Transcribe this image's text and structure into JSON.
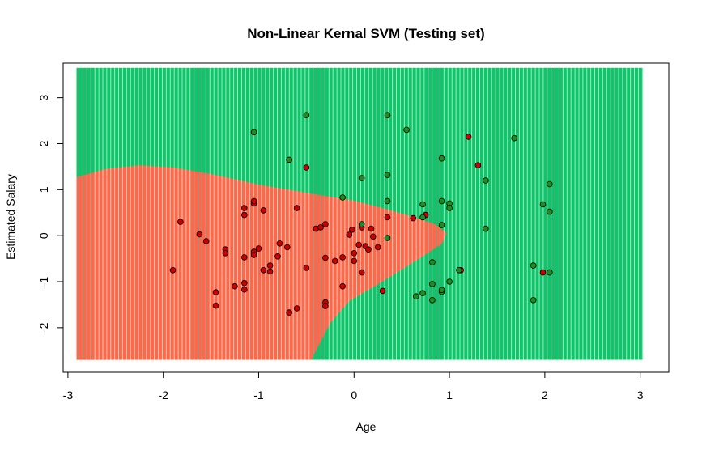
{
  "chart_data": {
    "type": "scatter",
    "title": "Non-Linear Kernal SVM (Testing set)",
    "xlabel": "Age",
    "ylabel": "Estimated Salary",
    "xlim": [
      -3.05,
      3.3
    ],
    "ylim": [
      -2.97,
      3.75
    ],
    "xticks": [
      -3,
      -2,
      -1,
      0,
      1,
      2,
      3
    ],
    "yticks": [
      -2,
      -1,
      0,
      1,
      2,
      3
    ],
    "grid": false,
    "region_extent": {
      "x": [
        -2.91,
        3.03
      ],
      "y": [
        -2.7,
        3.65
      ]
    },
    "colors": {
      "class0_region": "#FA6A4A",
      "class1_region": "#10C46A",
      "class0_point": "#CC0000",
      "class1_point": "#1E8C1E",
      "point_edge": "#000000"
    },
    "decision_boundary": [
      [
        -2.91,
        1.27
      ],
      [
        -2.6,
        1.45
      ],
      [
        -2.25,
        1.53
      ],
      [
        -1.9,
        1.48
      ],
      [
        -1.5,
        1.34
      ],
      [
        -1.0,
        1.11
      ],
      [
        -0.5,
        0.93
      ],
      [
        0.0,
        0.76
      ],
      [
        0.3,
        0.6
      ],
      [
        0.6,
        0.42
      ],
      [
        0.85,
        0.25
      ],
      [
        0.97,
        0.05
      ],
      [
        0.92,
        -0.18
      ],
      [
        0.72,
        -0.45
      ],
      [
        0.45,
        -0.8
      ],
      [
        0.2,
        -1.12
      ],
      [
        -0.05,
        -1.42
      ],
      [
        -0.25,
        -1.9
      ],
      [
        -0.4,
        -2.5
      ],
      [
        -0.45,
        -2.7
      ]
    ],
    "corner_boundary": [
      [
        -2.91,
        -2.42
      ],
      [
        -2.6,
        -2.7
      ]
    ],
    "series": [
      {
        "class": 0,
        "points": [
          [
            -1.9,
            -0.75
          ],
          [
            -1.82,
            0.3
          ],
          [
            -1.62,
            0.03
          ],
          [
            -1.55,
            -0.12
          ],
          [
            -1.45,
            -1.23
          ],
          [
            -1.45,
            -1.52
          ],
          [
            -1.35,
            -0.3
          ],
          [
            -1.35,
            -0.38
          ],
          [
            -1.25,
            -1.1
          ],
          [
            -1.15,
            -1.03
          ],
          [
            -1.15,
            -1.17
          ],
          [
            -1.15,
            0.45
          ],
          [
            -1.15,
            0.6
          ],
          [
            -1.15,
            -0.47
          ],
          [
            -1.05,
            0.7
          ],
          [
            -1.05,
            0.75
          ],
          [
            -1.05,
            -0.35
          ],
          [
            -1.05,
            -0.42
          ],
          [
            -1.0,
            -0.28
          ],
          [
            -0.95,
            0.55
          ],
          [
            -0.95,
            -0.75
          ],
          [
            -0.88,
            -0.65
          ],
          [
            -0.88,
            -0.78
          ],
          [
            -0.8,
            -0.45
          ],
          [
            -0.78,
            -0.17
          ],
          [
            -0.7,
            -0.25
          ],
          [
            -0.68,
            -1.67
          ],
          [
            -0.6,
            -1.58
          ],
          [
            -0.6,
            0.6
          ],
          [
            -0.5,
            1.48
          ],
          [
            -0.5,
            -0.7
          ],
          [
            -0.4,
            0.15
          ],
          [
            -0.35,
            0.18
          ],
          [
            -0.3,
            -1.45
          ],
          [
            -0.3,
            -1.53
          ],
          [
            -0.3,
            -0.48
          ],
          [
            -0.3,
            0.25
          ],
          [
            -0.2,
            -0.55
          ],
          [
            -0.12,
            -1.1
          ],
          [
            -0.12,
            -0.47
          ],
          [
            -0.05,
            0.02
          ],
          [
            -0.02,
            0.13
          ],
          [
            0.0,
            -0.38
          ],
          [
            0.0,
            -0.55
          ],
          [
            0.05,
            -0.2
          ],
          [
            0.08,
            -0.8
          ],
          [
            0.08,
            0.18
          ],
          [
            0.12,
            -0.23
          ],
          [
            0.15,
            -0.3
          ],
          [
            0.18,
            0.15
          ],
          [
            0.2,
            -0.02
          ],
          [
            0.25,
            -0.25
          ],
          [
            0.3,
            -1.2
          ],
          [
            0.35,
            0.4
          ],
          [
            0.62,
            0.38
          ],
          [
            0.75,
            0.45
          ],
          [
            1.12,
            -0.75
          ],
          [
            1.2,
            2.15
          ],
          [
            1.3,
            1.53
          ],
          [
            1.98,
            -0.8
          ]
        ]
      },
      {
        "class": 1,
        "points": [
          [
            -1.05,
            2.25
          ],
          [
            -0.68,
            1.65
          ],
          [
            -0.5,
            2.62
          ],
          [
            -0.12,
            0.83
          ],
          [
            0.08,
            1.25
          ],
          [
            0.08,
            0.25
          ],
          [
            0.35,
            2.62
          ],
          [
            0.35,
            1.32
          ],
          [
            0.35,
            0.75
          ],
          [
            0.35,
            -0.05
          ],
          [
            0.55,
            2.3
          ],
          [
            0.65,
            -1.32
          ],
          [
            0.72,
            0.68
          ],
          [
            0.72,
            0.4
          ],
          [
            0.72,
            -1.25
          ],
          [
            0.82,
            -0.58
          ],
          [
            0.82,
            -1.05
          ],
          [
            0.82,
            -1.4
          ],
          [
            0.92,
            1.68
          ],
          [
            0.92,
            0.75
          ],
          [
            0.92,
            0.23
          ],
          [
            0.92,
            -1.22
          ],
          [
            0.92,
            -1.18
          ],
          [
            1.0,
            0.7
          ],
          [
            1.0,
            0.6
          ],
          [
            1.0,
            -1.0
          ],
          [
            1.1,
            -0.75
          ],
          [
            1.38,
            1.2
          ],
          [
            1.38,
            0.15
          ],
          [
            1.68,
            2.12
          ],
          [
            1.88,
            -0.65
          ],
          [
            1.88,
            -1.4
          ],
          [
            1.98,
            0.68
          ],
          [
            2.05,
            1.12
          ],
          [
            2.05,
            0.52
          ],
          [
            2.05,
            -0.8
          ]
        ]
      }
    ]
  }
}
